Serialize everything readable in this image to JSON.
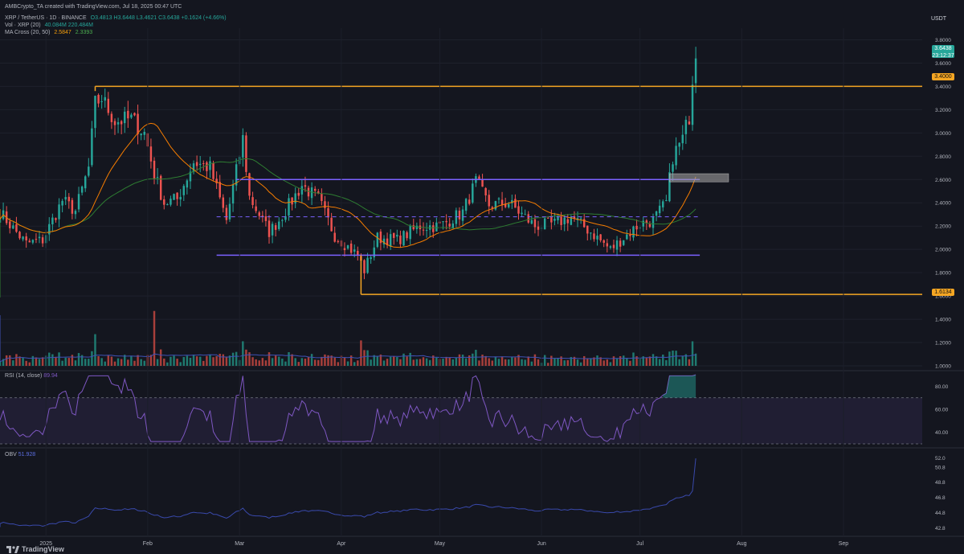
{
  "created_by": "AMBCrypto_TA created with TradingView.com, Jul 18, 2025 00:47 UTC",
  "header": {
    "symbol": "XRP / TetherUS · 1D · BINANCE",
    "ohlc": "O3.4813  H3.6448  L3.4621  C3.6438  +0.1624 (+4.66%)",
    "vol_label": "Vol · XRP (20)",
    "vol_values": "40.084M  220.484M",
    "ma_label": "MA Cross (20, 50)",
    "ma_fast": "2.5847",
    "ma_slow": "2.3393"
  },
  "currency": "USDT",
  "price_labels": {
    "current": "3.6438",
    "countdown": "23:12:37",
    "resistance": "3.4000",
    "support": "1.6134"
  },
  "rsi": {
    "label": "RSI (14, close)",
    "value": "89.94"
  },
  "obv": {
    "label": "OBV",
    "value": "51.928"
  },
  "watermark": "TradingView",
  "colors": {
    "bg": "#14161f",
    "up": "#26a69a",
    "down": "#ef5350",
    "ma20": "#f57c00",
    "ma50": "#2e7d32",
    "level": "#f5a623",
    "range": "#7b61ff",
    "vol_ma": "#3f51b5",
    "rsi": "#7e57c2",
    "obv": "#3949ab"
  },
  "chart_data": [
    {
      "type": "candlestick",
      "title": "XRP / TetherUS · 1D · BINANCE",
      "ylim": [
        1.0,
        3.9
      ],
      "y_ticks": [
        "3.8000",
        "3.6000",
        "3.4000",
        "3.2000",
        "3.0000",
        "2.8000",
        "2.6000",
        "2.4000",
        "2.2000",
        "2.0000",
        "1.8000",
        "1.6000",
        "1.4000",
        "1.2000",
        "1.0000"
      ],
      "x_ticks": [
        "2025",
        "Feb",
        "Mar",
        "Apr",
        "May",
        "Jun",
        "Jul",
        "Aug",
        "Sep"
      ],
      "close_keypoints": [
        [
          "2024-12-18",
          2.32
        ],
        [
          "2024-12-22",
          2.18
        ],
        [
          "2024-12-26",
          2.05
        ],
        [
          "2024-12-31",
          2.08
        ],
        [
          "2025-01-06",
          2.42
        ],
        [
          "2025-01-10",
          2.33
        ],
        [
          "2025-01-14",
          2.7
        ],
        [
          "2025-01-16",
          3.25
        ],
        [
          "2025-01-18",
          3.3
        ],
        [
          "2025-01-22",
          3.1
        ],
        [
          "2025-01-27",
          3.12
        ],
        [
          "2025-01-31",
          3.0
        ],
        [
          "2025-02-03",
          2.65
        ],
        [
          "2025-02-06",
          2.4
        ],
        [
          "2025-02-10",
          2.43
        ],
        [
          "2025-02-15",
          2.75
        ],
        [
          "2025-02-20",
          2.7
        ],
        [
          "2025-02-25",
          2.25
        ],
        [
          "2025-03-02",
          2.95
        ],
        [
          "2025-03-04",
          2.45
        ],
        [
          "2025-03-10",
          2.15
        ],
        [
          "2025-03-13",
          2.25
        ],
        [
          "2025-03-20",
          2.55
        ],
        [
          "2025-03-25",
          2.43
        ],
        [
          "2025-03-30",
          2.12
        ],
        [
          "2025-04-06",
          1.95
        ],
        [
          "2025-04-08",
          1.82
        ],
        [
          "2025-04-12",
          2.1
        ],
        [
          "2025-04-18",
          2.08
        ],
        [
          "2025-04-25",
          2.2
        ],
        [
          "2025-05-01",
          2.2
        ],
        [
          "2025-05-08",
          2.32
        ],
        [
          "2025-05-12",
          2.58
        ],
        [
          "2025-05-16",
          2.38
        ],
        [
          "2025-05-22",
          2.4
        ],
        [
          "2025-05-30",
          2.2
        ],
        [
          "2025-06-05",
          2.22
        ],
        [
          "2025-06-10",
          2.28
        ],
        [
          "2025-06-16",
          2.15
        ],
        [
          "2025-06-22",
          2.0
        ],
        [
          "2025-06-26",
          2.1
        ],
        [
          "2025-07-01",
          2.22
        ],
        [
          "2025-07-05",
          2.25
        ],
        [
          "2025-07-09",
          2.4
        ],
        [
          "2025-07-11",
          2.8
        ],
        [
          "2025-07-14",
          2.95
        ],
        [
          "2025-07-16",
          3.15
        ],
        [
          "2025-07-17",
          3.48
        ],
        [
          "2025-07-18",
          3.64
        ]
      ],
      "levels": [
        {
          "label": "3.4000",
          "value": 3.4,
          "from": "2025-01-16",
          "to": "2025-09-20"
        },
        {
          "label": "1.6134",
          "value": 1.6134,
          "from": "2025-04-07",
          "to": "2025-09-20"
        }
      ],
      "range_box": {
        "top": 2.6,
        "bottom": 1.95,
        "mid": 2.28,
        "from": "2025-02-28",
        "to": "2025-07-18"
      },
      "fvg_zone": {
        "top": 2.65,
        "bottom": 2.58,
        "from": "2025-07-10",
        "to": "2025-07-28"
      }
    },
    {
      "type": "line",
      "title": "RSI (14, close)",
      "ylim": [
        30,
        90
      ],
      "y_ticks": [
        "80.00",
        "60.00",
        "40.00"
      ],
      "band": [
        30,
        70
      ],
      "last_value": 89.94
    },
    {
      "type": "line",
      "title": "OBV",
      "ylim": [
        42,
        53
      ],
      "y_ticks": [
        "52.0",
        "50.8",
        "48.8",
        "46.8",
        "44.8",
        "42.8"
      ],
      "last_value": 51.928
    }
  ]
}
